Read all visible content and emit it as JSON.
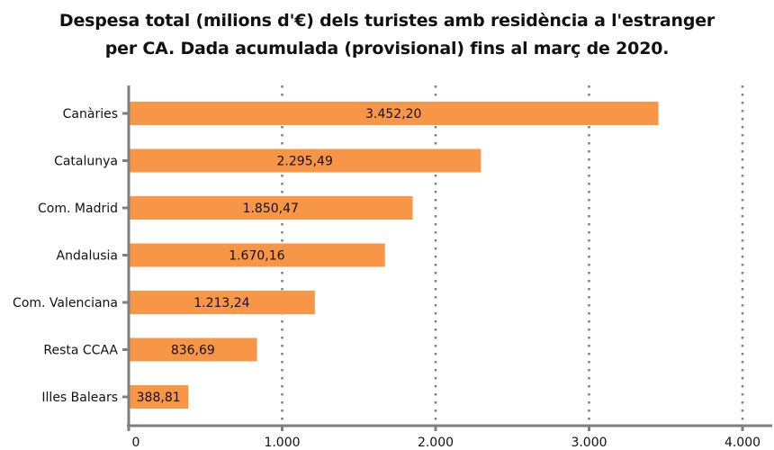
{
  "chart_data": {
    "type": "bar",
    "orientation": "horizontal",
    "title_lines": [
      "Despesa total (milions d'€) dels turistes amb residència a l'estranger",
      "per CA. Dada acumulada (provisional) fins al març de 2020."
    ],
    "categories": [
      "Canàries",
      "Catalunya",
      "Com. Madrid",
      "Andalusia",
      "Com. Valenciana",
      "Resta CCAA",
      "Illes Balears"
    ],
    "values": [
      3452.2,
      2295.49,
      1850.47,
      1670.16,
      1213.24,
      836.69,
      388.81
    ],
    "value_labels": [
      "3.452,20",
      "2.295,49",
      "1.850,47",
      "1.670,16",
      "1.213,24",
      "836,69",
      "388,81"
    ],
    "xlim": [
      0,
      4000
    ],
    "xticks": [
      0,
      1000,
      2000,
      3000,
      4000
    ],
    "xtick_labels": [
      "0",
      "1.000",
      "2.000",
      "3.000",
      "4.000"
    ],
    "grid": "vertical dotted",
    "bar_color": "#F79646",
    "axis_color": "#7f7f7f",
    "grid_color": "#7f7f7f"
  }
}
